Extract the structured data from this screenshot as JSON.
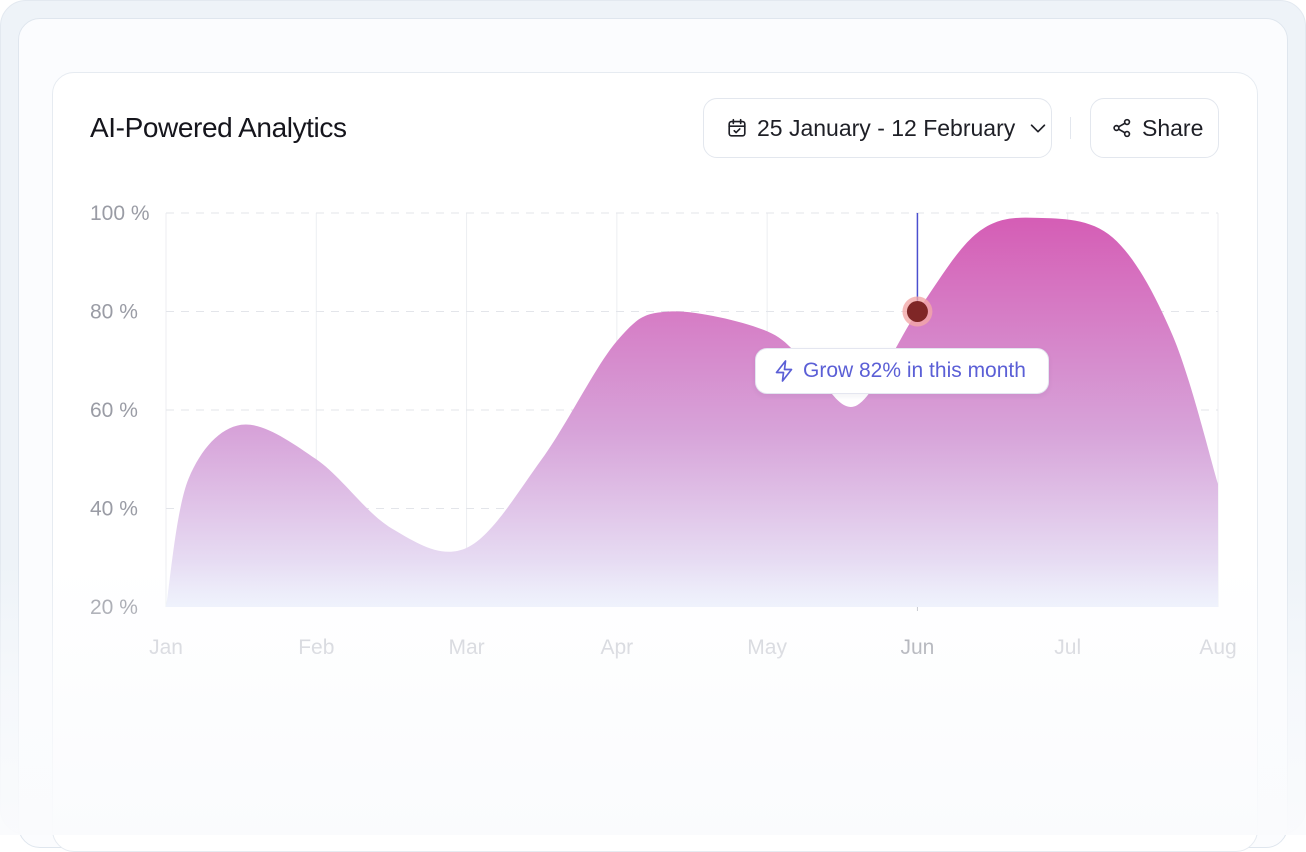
{
  "card": {
    "title": "AI-Powered Analytics",
    "date_range": "25 January - 12 February",
    "share_label": "Share"
  },
  "tooltip": {
    "text": "Grow 82% in this month",
    "icon": "lightning-icon"
  },
  "icons": {
    "date": "calendar-icon",
    "dropdown": "chevron-down-icon",
    "share": "share-icon"
  },
  "colors": {
    "area_top": "#d55db5",
    "area_bottom": "#ecf0fc",
    "marker_line": "#4b4fcf",
    "marker_dot": "#7f2626",
    "marker_ring": "#f2a8a8",
    "tooltip_text": "#5b5fd6"
  },
  "chart_data": {
    "type": "area",
    "categories": [
      "Jan",
      "Feb",
      "Mar",
      "Apr",
      "May",
      "Jun",
      "Jul",
      "Aug"
    ],
    "yticks": [
      "100 %",
      "80 %",
      "60 %",
      "40 %",
      "20 %"
    ],
    "ylim": [
      20,
      100
    ],
    "grid": true,
    "highlighted_category": "Jun",
    "highlighted_value": 80,
    "series": [
      {
        "points": [
          {
            "x": 0.0,
            "y": 20
          },
          {
            "x": 0.15,
            "y": 46
          },
          {
            "x": 0.5,
            "y": 57
          },
          {
            "x": 1.0,
            "y": 50
          },
          {
            "x": 1.5,
            "y": 36
          },
          {
            "x": 2.0,
            "y": 32
          },
          {
            "x": 2.5,
            "y": 50
          },
          {
            "x": 3.0,
            "y": 74
          },
          {
            "x": 3.35,
            "y": 80
          },
          {
            "x": 4.0,
            "y": 76
          },
          {
            "x": 4.3,
            "y": 68
          },
          {
            "x": 4.6,
            "y": 61
          },
          {
            "x": 5.0,
            "y": 80
          },
          {
            "x": 5.4,
            "y": 96
          },
          {
            "x": 5.8,
            "y": 99
          },
          {
            "x": 6.3,
            "y": 95
          },
          {
            "x": 6.7,
            "y": 75
          },
          {
            "x": 7.0,
            "y": 45
          }
        ]
      }
    ]
  }
}
